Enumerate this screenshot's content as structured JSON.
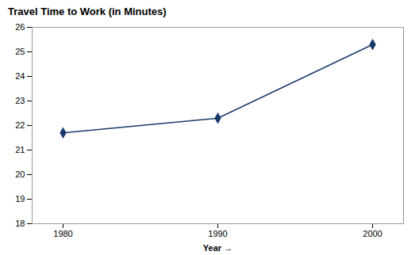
{
  "chart_data": {
    "type": "line",
    "title": "Travel Time to Work (in Minutes)",
    "xlabel": "Year",
    "x": [
      1980,
      1990,
      2000
    ],
    "values": [
      21.7,
      22.3,
      25.3
    ],
    "color": "#1B3A6B",
    "marker": "diamond",
    "xlim": [
      1978,
      2002
    ],
    "xticks": [
      1980,
      1990,
      2000
    ],
    "ylim": [
      18,
      26
    ],
    "yticks": [
      18,
      19,
      20,
      21,
      22,
      23,
      24,
      25,
      26
    ],
    "grid": false
  }
}
